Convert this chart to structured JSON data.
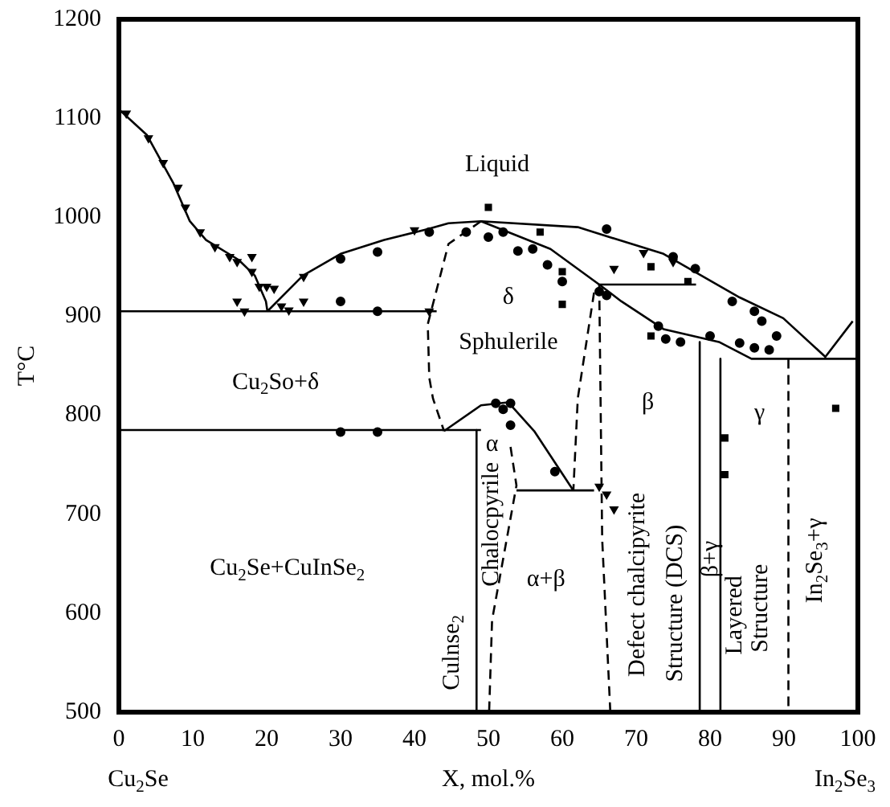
{
  "chart_data": {
    "type": "scatter",
    "xlabel": "X, mol.%",
    "ylabel": "T°C",
    "xlim": [
      0,
      100
    ],
    "ylim": [
      500,
      1200
    ],
    "xticks": [
      0,
      10,
      20,
      30,
      40,
      50,
      60,
      70,
      80,
      90,
      100
    ],
    "yticks": [
      500,
      600,
      700,
      800,
      900,
      1000,
      1100,
      1200
    ],
    "grid": false,
    "legend": false,
    "series": [
      {
        "type": "line",
        "color": "#000000",
        "marker": "none",
        "line_style": "solid",
        "x": [
          0,
          3.8,
          7.4,
          9.6,
          11.8,
          16.2,
          18.4,
          19.9,
          20.1
        ],
        "values": [
          1109,
          1083,
          1034,
          996,
          977,
          957,
          941,
          915,
          905
        ]
      },
      {
        "type": "line",
        "color": "#000000",
        "marker": "none",
        "line_style": "solid",
        "x": [
          20.1,
          24.9,
          30,
          35.9,
          41.8,
          44.6,
          49,
          62.1,
          73.7,
          84,
          89.9,
          95.6,
          99.3
        ],
        "values": [
          905,
          941,
          963,
          977,
          988,
          994,
          996,
          990,
          963,
          919,
          898,
          859,
          895
        ]
      },
      {
        "type": "line",
        "color": "#000000",
        "marker": "none",
        "line_style": "solid",
        "x": [
          49,
          58.4,
          65,
          68,
          73.7,
          81.2,
          85.6,
          95.6,
          100
        ],
        "values": [
          996,
          968,
          932,
          915,
          887,
          874,
          857,
          857,
          857
        ]
      },
      {
        "type": "line",
        "color": "#000000",
        "marker": "none",
        "line_style": "solid",
        "x": [
          65,
          78.1
        ],
        "values": [
          932,
          932
        ]
      },
      {
        "type": "line",
        "color": "#000000",
        "marker": "none",
        "line_style": "solid",
        "x": [
          0,
          43
        ],
        "values": [
          905,
          905
        ]
      },
      {
        "type": "line",
        "color": "#000000",
        "marker": "none",
        "line_style": "solid",
        "x": [
          0,
          49
        ],
        "values": [
          785,
          785
        ]
      },
      {
        "type": "line",
        "color": "#000000",
        "marker": "none",
        "line_style": "solid",
        "x": [
          53.8,
          64.3
        ],
        "values": [
          724,
          724
        ]
      },
      {
        "type": "line",
        "color": "#000000",
        "marker": "none",
        "line_style": "dashed",
        "x": [
          49,
          44.6,
          41.8,
          42,
          42.5,
          44
        ],
        "values": [
          996,
          973,
          892,
          838,
          817,
          784
        ]
      },
      {
        "type": "line",
        "color": "#000000",
        "marker": "none",
        "line_style": "dashed",
        "x": [
          64.3,
          62.1,
          61.5
        ],
        "values": [
          924,
          817,
          724
        ]
      },
      {
        "type": "line",
        "color": "#000000",
        "marker": "none",
        "line_style": "dashed",
        "x": [
          65,
          65.4,
          66.5
        ],
        "values": [
          932,
          675,
          500
        ]
      },
      {
        "type": "line",
        "color": "#000000",
        "marker": "none",
        "line_style": "solid",
        "x": [
          44,
          49,
          52.7,
          56.2,
          61.5
        ],
        "values": [
          784,
          810,
          813,
          784,
          724
        ]
      },
      {
        "type": "line",
        "color": "#000000",
        "marker": "none",
        "line_style": "solid",
        "x": [
          48.4,
          48.4
        ],
        "values": [
          785,
          500
        ]
      },
      {
        "type": "line",
        "color": "#000000",
        "marker": "none",
        "line_style": "dashed",
        "x": [
          53,
          53.8,
          50.5,
          50.1
        ],
        "values": [
          768,
          729,
          593,
          500
        ]
      },
      {
        "type": "line",
        "color": "#000000",
        "marker": "none",
        "line_style": "solid",
        "x": [
          78.6,
          78.6
        ],
        "values": [
          874,
          500
        ]
      },
      {
        "type": "line",
        "color": "#000000",
        "marker": "none",
        "line_style": "solid",
        "x": [
          81.4,
          81.4
        ],
        "values": [
          857,
          500
        ]
      },
      {
        "type": "line",
        "color": "#000000",
        "marker": "none",
        "line_style": "dashed",
        "x": [
          90.6,
          90.6
        ],
        "values": [
          857,
          500
        ]
      },
      {
        "type": "scatter",
        "color": "#000000",
        "marker": "triangle",
        "x": [
          1,
          4,
          6,
          8,
          9,
          11,
          13,
          15,
          16,
          18,
          18,
          19,
          20,
          21,
          16,
          22,
          25,
          25,
          40,
          42,
          17,
          23,
          66,
          67,
          65,
          67,
          71,
          75
        ],
        "values": [
          1105,
          1080,
          1055,
          1030,
          1010,
          985,
          970,
          960,
          955,
          945,
          960,
          930,
          930,
          928,
          915,
          910,
          940,
          915,
          987,
          905,
          905,
          906,
          720,
          705,
          728,
          948,
          964,
          955
        ]
      },
      {
        "type": "scatter",
        "color": "#000000",
        "marker": "circle",
        "x": [
          30,
          35,
          30,
          35,
          30,
          35,
          47,
          54,
          58,
          53,
          59,
          42
        ],
        "values": [
          958,
          965,
          915,
          905,
          783,
          783,
          985,
          966,
          952,
          790,
          743,
          985
        ]
      },
      {
        "type": "scatter",
        "color": "#000000",
        "marker": "square",
        "x": [
          50,
          57,
          60,
          60,
          72,
          77,
          72,
          82,
          82,
          97
        ],
        "values": [
          1010,
          985,
          945,
          912,
          950,
          935,
          880,
          740,
          777,
          807
        ]
      },
      {
        "type": "scatter",
        "color": "#000000",
        "marker": "circle",
        "x": [
          52,
          50,
          56,
          60,
          65,
          66,
          73,
          74,
          76,
          80,
          84,
          86,
          88,
          89,
          66,
          75,
          78,
          83,
          86,
          87,
          51,
          53,
          52
        ],
        "values": [
          985,
          980,
          968,
          935,
          925,
          921,
          890,
          877,
          874,
          880,
          873,
          868,
          866,
          880,
          988,
          960,
          948,
          915,
          905,
          895,
          812,
          812,
          806
        ]
      }
    ],
    "annotations": [
      "Cu$_{2}$Se",
      "In$_{2}$Se$_{3}$",
      "Liquid",
      "δ",
      "Sphulerile",
      "Cu$_{2}$So+δ",
      "Cu$_{2}$Se+CuInSe$_{2}$",
      "β",
      "γ",
      "α+β",
      "α",
      "Culnse$_{2}$",
      "Chalocpyrile",
      "Defect chalcipyrite",
      "Structure (DCS)",
      "β+γ",
      "Layered",
      "Structure",
      "In$_{2}$Se$_{3}$+γ"
    ]
  }
}
